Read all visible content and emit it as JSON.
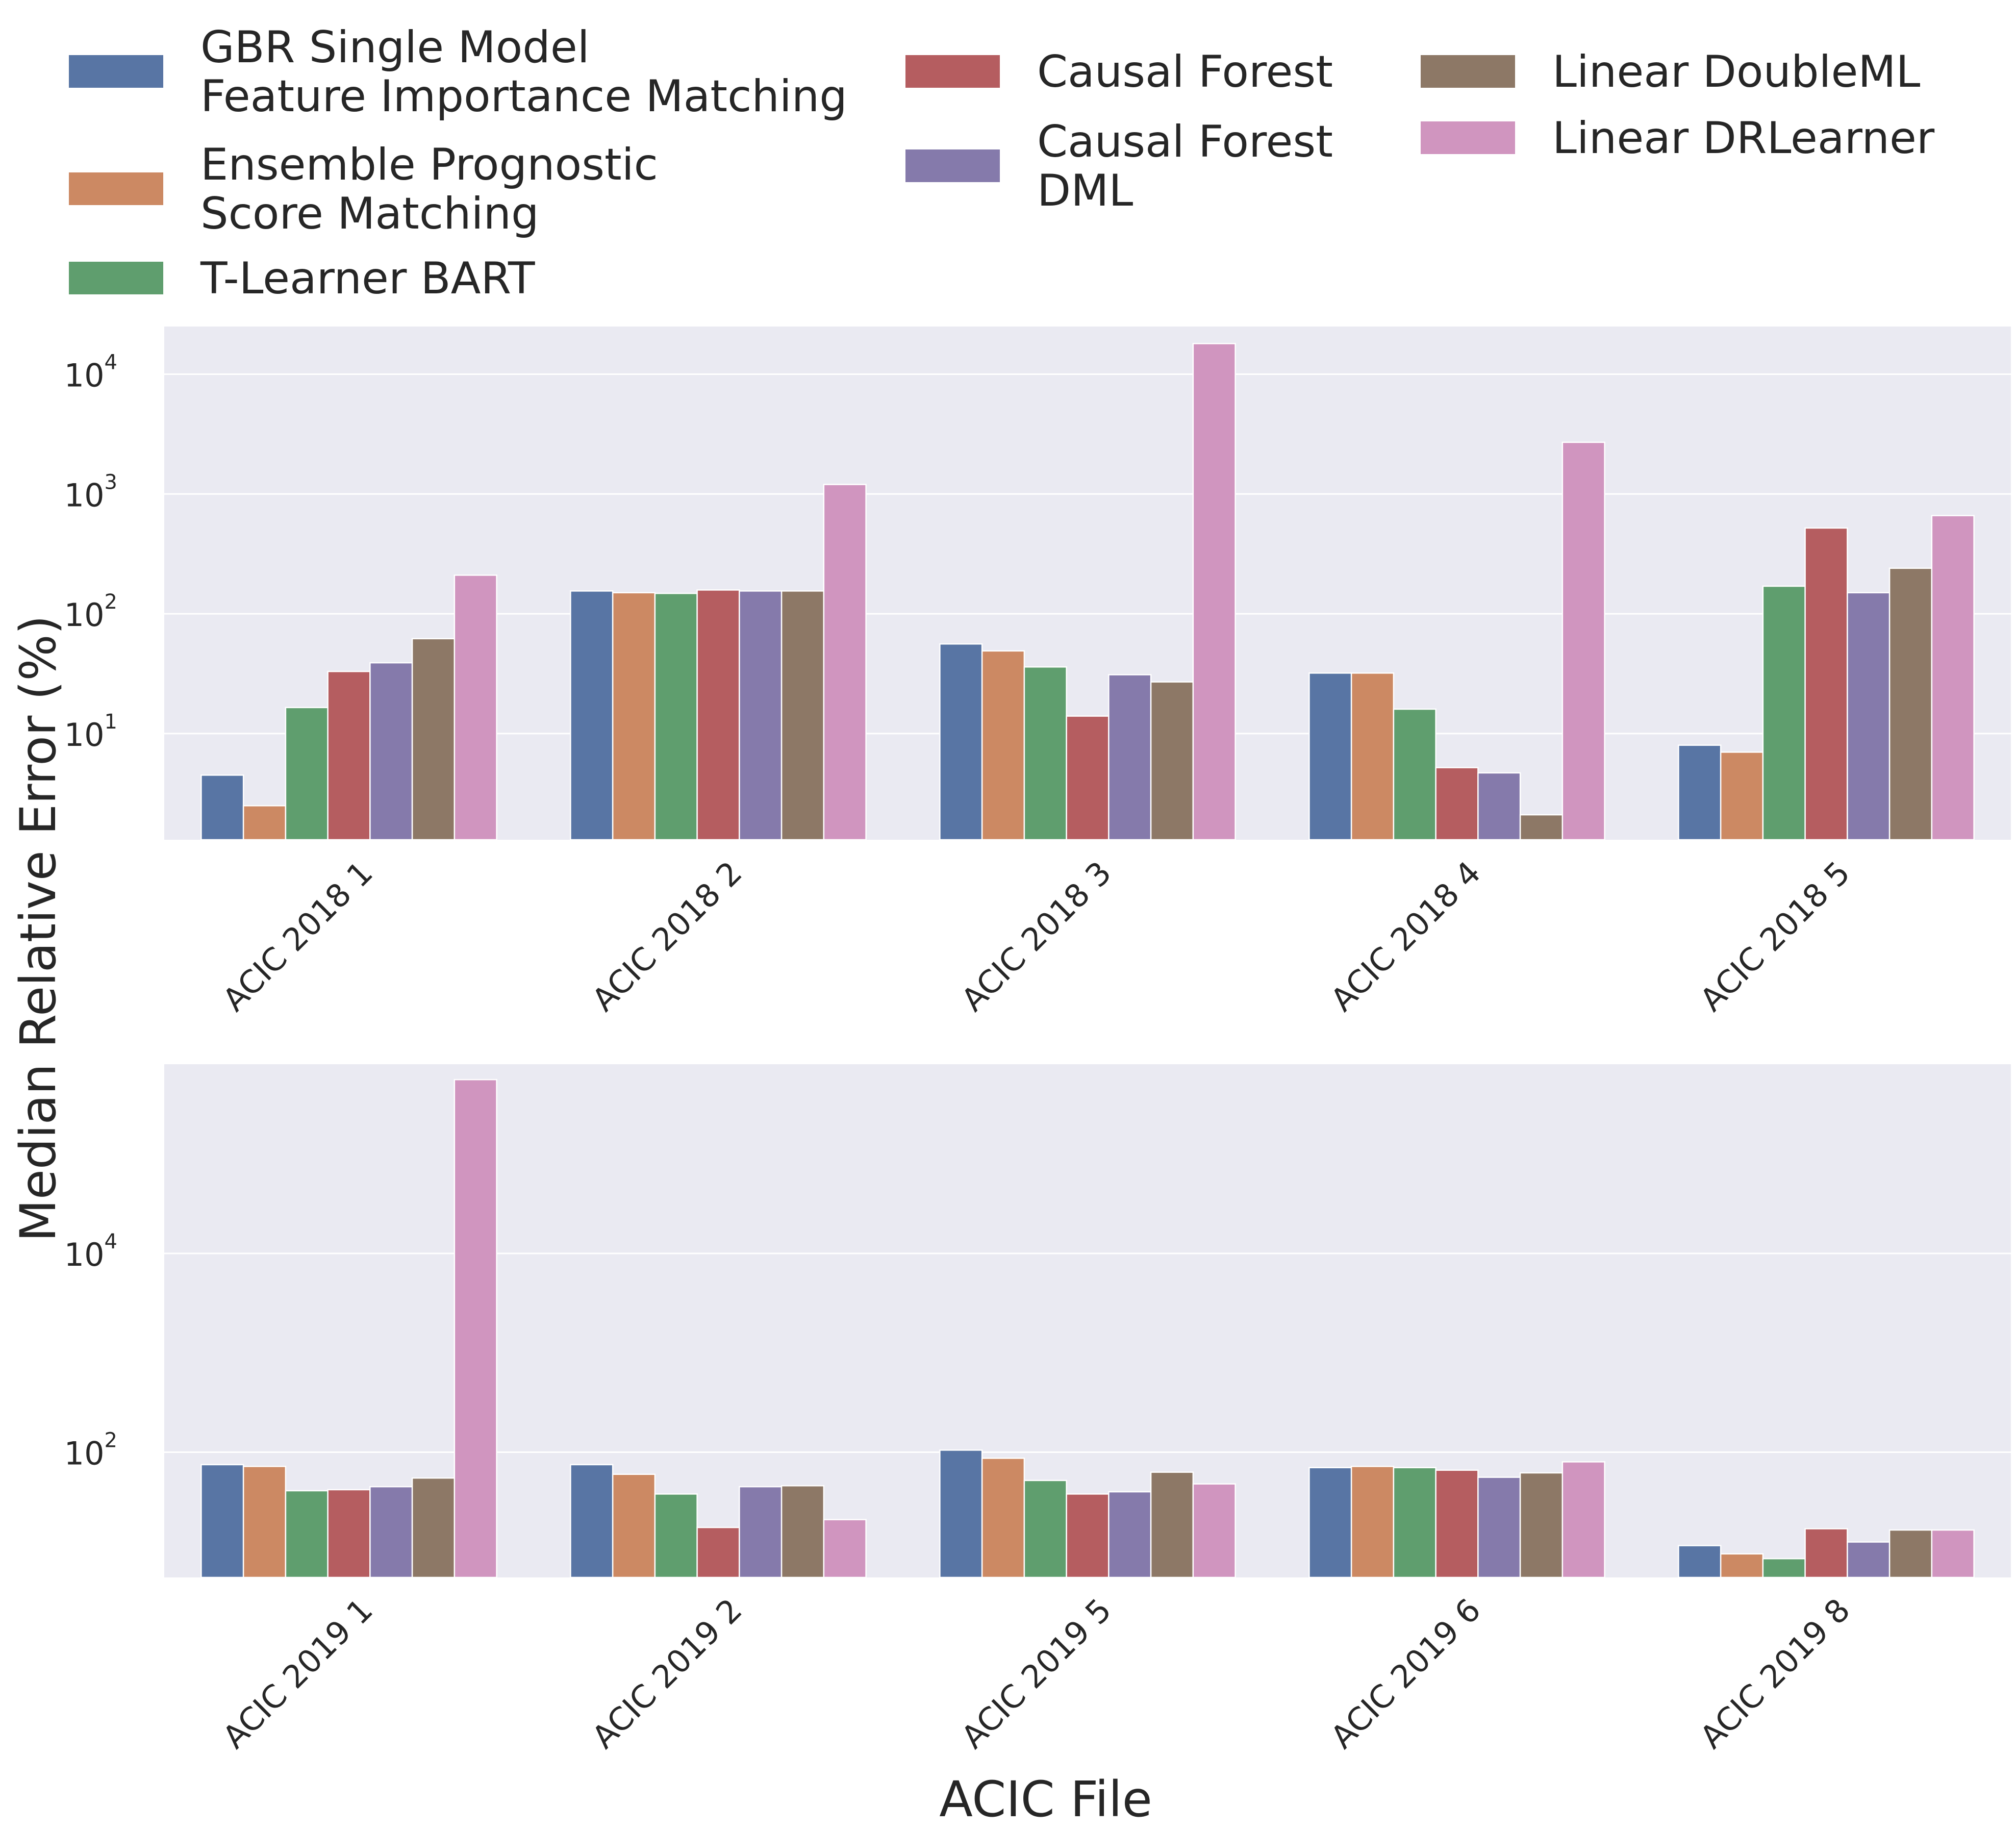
{
  "legend": {
    "placement": "top",
    "entries": [
      {
        "lines": [
          "GBR Single Model",
          "Feature Importance Matching"
        ],
        "color": "#5875a4"
      },
      {
        "lines": [
          "Ensemble Prognostic",
          "Score Matching"
        ],
        "color": "#cc8963"
      },
      {
        "lines": [
          "T-Learner BART"
        ],
        "color": "#5f9e6e"
      },
      {
        "lines": [
          "Causal Forest"
        ],
        "color": "#b55d60"
      },
      {
        "lines": [
          "Causal Forest",
          "DML"
        ],
        "color": "#857aab"
      },
      {
        "lines": [
          "Linear DoubleML"
        ],
        "color": "#8d7866"
      },
      {
        "lines": [
          "Linear DRLearner"
        ],
        "color": "#d095bf"
      }
    ]
  },
  "axes": {
    "ylabel": "Median Relative Error (%)",
    "xlabel": "ACIC File"
  },
  "chart_data": [
    {
      "type": "bar",
      "yscale": "log",
      "ylim": [
        1.3,
        25000
      ],
      "yticks": [
        {
          "base": "10",
          "exp": "1",
          "value": 10
        },
        {
          "base": "10",
          "exp": "2",
          "value": 100
        },
        {
          "base": "10",
          "exp": "3",
          "value": 1000
        },
        {
          "base": "10",
          "exp": "4",
          "value": 10000
        }
      ],
      "grid": true,
      "categories": [
        "ACIC 2018 1",
        "ACIC 2018 2",
        "ACIC 2018 3",
        "ACIC 2018 4",
        "ACIC 2018 5"
      ],
      "series": [
        {
          "name": "GBR Single Model Feature Importance Matching",
          "values": [
            4.5,
            155,
            56,
            32,
            8
          ]
        },
        {
          "name": "Ensemble Prognostic Score Matching",
          "values": [
            2.5,
            150,
            49,
            32,
            7
          ]
        },
        {
          "name": "T-Learner BART",
          "values": [
            16.5,
            148,
            36,
            16,
            170
          ]
        },
        {
          "name": "Causal Forest",
          "values": [
            33,
            158,
            14,
            5.2,
            520
          ]
        },
        {
          "name": "Causal Forest DML",
          "values": [
            39,
            155,
            31,
            4.7,
            150
          ]
        },
        {
          "name": "Linear DoubleML",
          "values": [
            62,
            155,
            27,
            2.1,
            240
          ]
        },
        {
          "name": "Linear DRLearner",
          "values": [
            210,
            1200,
            18000,
            2700,
            660
          ]
        }
      ]
    },
    {
      "type": "bar",
      "yscale": "log",
      "ylim": [
        5.5,
        800000
      ],
      "yticks": [
        {
          "base": "10",
          "exp": "2",
          "value": 100
        },
        {
          "base": "10",
          "exp": "4",
          "value": 10000
        }
      ],
      "grid": true,
      "categories": [
        "ACIC 2019 1",
        "ACIC 2019 2",
        "ACIC 2019 5",
        "ACIC 2019 6",
        "ACIC 2019 8"
      ],
      "series": [
        {
          "name": "GBR Single Model Feature Importance Matching",
          "values": [
            75,
            75,
            105,
            70,
            11.5
          ]
        },
        {
          "name": "Ensemble Prognostic Score Matching",
          "values": [
            72,
            60,
            87,
            72,
            9.5
          ]
        },
        {
          "name": "T-Learner BART",
          "values": [
            41,
            38,
            52,
            70,
            8.5
          ]
        },
        {
          "name": "Causal Forest",
          "values": [
            42,
            17.5,
            38,
            66,
            17
          ]
        },
        {
          "name": "Causal Forest DML",
          "values": [
            45,
            45,
            40,
            56,
            12.5
          ]
        },
        {
          "name": "Linear DoubleML",
          "values": [
            55,
            46,
            63,
            62,
            16.5
          ]
        },
        {
          "name": "Linear DRLearner",
          "values": [
            560000,
            21,
            48,
            80,
            16.5
          ]
        }
      ]
    }
  ]
}
